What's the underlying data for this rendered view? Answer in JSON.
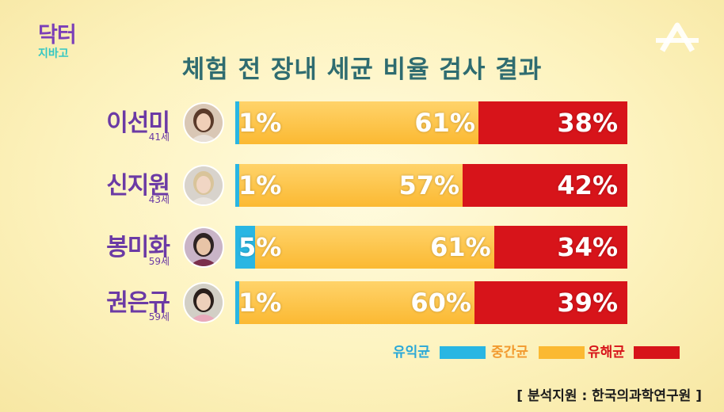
{
  "logo": {
    "top": "닥터",
    "bottom": "지바고"
  },
  "title": "체험 전 장내 세균 비율 검사 결과",
  "colors": {
    "good": "#29b6e3",
    "mid": "#fbb932",
    "bad": "#d7141a"
  },
  "legend": [
    {
      "label": "유익균",
      "color": "#29b6e3",
      "text_color": "#29a8d8"
    },
    {
      "label": "중간균",
      "color": "#fbb932",
      "text_color": "#f29a2e"
    },
    {
      "label": "유해균",
      "color": "#d7141a",
      "text_color": "#d7141a"
    }
  ],
  "source": "[ 분석지원 : 한국의과학연구원 ]",
  "chart_data": {
    "type": "bar",
    "stacked": true,
    "orientation": "horizontal",
    "title": "체험 전 장내 세균 비율 검사 결과",
    "categories": [
      "이선미",
      "신지원",
      "봉미화",
      "권은규"
    ],
    "ages": [
      "41세",
      "43세",
      "59세",
      "59세"
    ],
    "series": [
      {
        "name": "유익균",
        "values": [
          1,
          1,
          5,
          1
        ],
        "labels": [
          "1%",
          "1%",
          "5%",
          "1%"
        ]
      },
      {
        "name": "중간균",
        "values": [
          61,
          57,
          61,
          60
        ],
        "labels": [
          "61%",
          "57%",
          "61%",
          "60%"
        ]
      },
      {
        "name": "유해균",
        "values": [
          38,
          42,
          34,
          39
        ],
        "labels": [
          "38%",
          "42%",
          "34%",
          "39%"
        ]
      }
    ],
    "xlim": [
      0,
      100
    ]
  }
}
